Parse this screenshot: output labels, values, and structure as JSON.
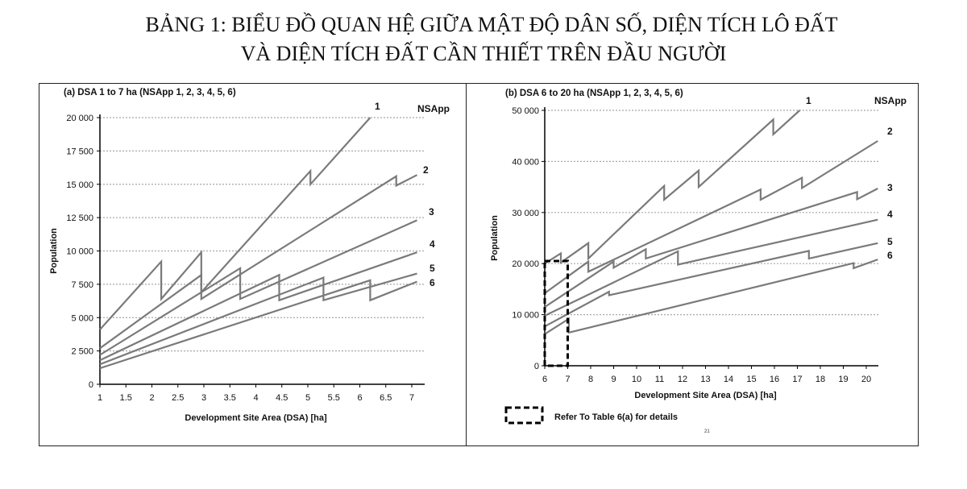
{
  "page_title": {
    "line1": "BẢNG 1: BIỂU ĐỒ QUAN HỆ GIỮA MẬT ĐỘ DÂN SỐ, DIỆN TÍCH LÔ ĐẤT",
    "line2": "VÀ DIỆN TÍCH ĐẤT CẦN THIẾT TRÊN ĐẦU NGƯỜI"
  },
  "colors": {
    "series": "#7a7a7a",
    "grid": "#a8a8a8",
    "axis": "#000000",
    "box": "#000000"
  },
  "chart_data": [
    {
      "type": "line",
      "title": "(a) DSA 1 to 7 ha (NSApp 1, 2, 3, 4, 5, 6)",
      "xlabel": "Development Site Area (DSA) [ha]",
      "ylabel": "Population",
      "legend_title": "NSApp",
      "xlim": [
        1,
        7.2
      ],
      "ylim": [
        0,
        20000
      ],
      "xticks": [
        1,
        1.5,
        2,
        2.5,
        3,
        3.5,
        4,
        4.5,
        5,
        5.5,
        6,
        6.5,
        7
      ],
      "xtick_labels": [
        "1",
        "1.5",
        "2",
        "2.5",
        "3",
        "3.5",
        "4",
        "4.5",
        "5",
        "5.5",
        "6",
        "6.5",
        "7"
      ],
      "yticks": [
        0,
        2500,
        5000,
        7500,
        10000,
        12500,
        15000,
        17500,
        20000
      ],
      "ytick_labels": [
        "0",
        "2 500",
        "5 000",
        "7 500",
        "10 000",
        "12 500",
        "15 000",
        "17 500",
        "20 000"
      ],
      "grid": "horizontal dotted",
      "series": [
        {
          "name": "1",
          "points": [
            [
              1,
              4100
            ],
            [
              2.18,
              9200
            ],
            [
              2.18,
              6400
            ],
            [
              2.95,
              9900
            ],
            [
              2.95,
              6900
            ],
            [
              5.05,
              16000
            ],
            [
              5.05,
              15000
            ],
            [
              6.2,
              20000
            ]
          ]
        },
        {
          "name": "2",
          "points": [
            [
              1,
              2700
            ],
            [
              2.95,
              8200
            ],
            [
              2.95,
              6400
            ],
            [
              6.7,
              15600
            ],
            [
              6.7,
              14900
            ],
            [
              7.1,
              15700
            ]
          ]
        },
        {
          "name": "3",
          "points": [
            [
              1,
              2200
            ],
            [
              3.7,
              8700
            ],
            [
              3.7,
              6400
            ],
            [
              7.1,
              12300
            ]
          ]
        },
        {
          "name": "4",
          "points": [
            [
              1,
              1800
            ],
            [
              4.45,
              8200
            ],
            [
              4.45,
              6300
            ],
            [
              7.1,
              9900
            ]
          ]
        },
        {
          "name": "5",
          "points": [
            [
              1,
              1500
            ],
            [
              5.3,
              8000
            ],
            [
              5.3,
              6300
            ],
            [
              7.1,
              8300
            ]
          ]
        },
        {
          "name": "6",
          "points": [
            [
              1,
              1200
            ],
            [
              6.2,
              7800
            ],
            [
              6.2,
              6300
            ],
            [
              7.1,
              7700
            ]
          ]
        }
      ]
    },
    {
      "type": "line",
      "title": "(b) DSA 6 to 20 ha (NSApp 1, 2, 3, 4, 5, 6)",
      "xlabel": "Development Site Area (DSA) [ha]",
      "ylabel": "Population",
      "legend_title": "NSApp",
      "xlim": [
        6,
        20.5
      ],
      "ylim": [
        0,
        50000
      ],
      "xticks": [
        6,
        7,
        8,
        9,
        10,
        11,
        12,
        13,
        14,
        15,
        16,
        17,
        18,
        19,
        20
      ],
      "xtick_labels": [
        "6",
        "7",
        "8",
        "9",
        "10",
        "11",
        "12",
        "13",
        "14",
        "15",
        "16",
        "17",
        "18",
        "19",
        "20"
      ],
      "yticks": [
        0,
        10000,
        20000,
        30000,
        40000,
        50000
      ],
      "ytick_labels": [
        "0",
        "10 000",
        "20 000",
        "30 000",
        "40 000",
        "50 000"
      ],
      "grid": "horizontal dotted",
      "highlight_box": {
        "x": [
          6,
          7
        ],
        "y": [
          0,
          20500
        ]
      },
      "note": "Refer To Table 6(a) for details",
      "small_note": "21",
      "series": [
        {
          "name": "1",
          "points": [
            [
              6,
              20000
            ],
            [
              6.7,
              22000
            ],
            [
              6.7,
              20200
            ],
            [
              7.9,
              24000
            ],
            [
              7.9,
              21000
            ],
            [
              11.2,
              35200
            ],
            [
              11.2,
              32500
            ],
            [
              12.7,
              38200
            ],
            [
              12.7,
              35000
            ],
            [
              15.95,
              48200
            ],
            [
              15.95,
              45300
            ],
            [
              17.1,
              50000
            ]
          ]
        },
        {
          "name": "2",
          "points": [
            [
              6,
              14200
            ],
            [
              7.9,
              20400
            ],
            [
              7.9,
              18400
            ],
            [
              15.4,
              34500
            ],
            [
              15.4,
              32500
            ],
            [
              17.2,
              36800
            ],
            [
              17.2,
              34800
            ],
            [
              20.5,
              44000
            ]
          ]
        },
        {
          "name": "3",
          "points": [
            [
              6,
              11500
            ],
            [
              9.0,
              20400
            ],
            [
              9.0,
              19200
            ],
            [
              10.4,
              22800
            ],
            [
              10.4,
              21000
            ],
            [
              19.6,
              34000
            ],
            [
              19.6,
              32600
            ],
            [
              20.5,
              34700
            ]
          ]
        },
        {
          "name": "4",
          "points": [
            [
              6,
              9800
            ],
            [
              11.8,
              22400
            ],
            [
              11.8,
              19800
            ],
            [
              20.5,
              28600
            ]
          ]
        },
        {
          "name": "5",
          "points": [
            [
              6,
              7700
            ],
            [
              8.8,
              14500
            ],
            [
              8.8,
              13800
            ],
            [
              17.5,
              22500
            ],
            [
              17.5,
              21000
            ],
            [
              20.5,
              24000
            ]
          ]
        },
        {
          "name": "6",
          "points": [
            [
              6,
              6200
            ],
            [
              7.05,
              9200
            ],
            [
              7.05,
              6500
            ],
            [
              19.45,
              20100
            ],
            [
              19.45,
              19100
            ],
            [
              20.5,
              20800
            ]
          ]
        }
      ]
    }
  ]
}
